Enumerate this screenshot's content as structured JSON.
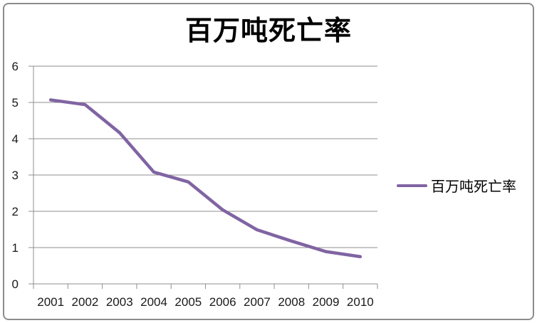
{
  "chart_data": {
    "type": "line",
    "title": "百万吨死亡率",
    "categories": [
      "2001",
      "2002",
      "2003",
      "2004",
      "2005",
      "2006",
      "2007",
      "2008",
      "2009",
      "2010"
    ],
    "series": [
      {
        "name": "百万吨死亡率",
        "values": [
          5.07,
          4.94,
          4.17,
          3.08,
          2.81,
          2.04,
          1.49,
          1.18,
          0.89,
          0.75
        ]
      }
    ],
    "xlabel": "",
    "ylabel": "",
    "ylim": [
      0,
      6
    ],
    "yticks": [
      0,
      1,
      2,
      3,
      4,
      5,
      6
    ],
    "grid": true,
    "legend_position": "right",
    "line_color": "#8064A2",
    "grid_color": "#8f8f8f",
    "axis_color": "#8f8f8f",
    "border_color": "#8c8c8c",
    "text_color": "#1a1a1a"
  }
}
